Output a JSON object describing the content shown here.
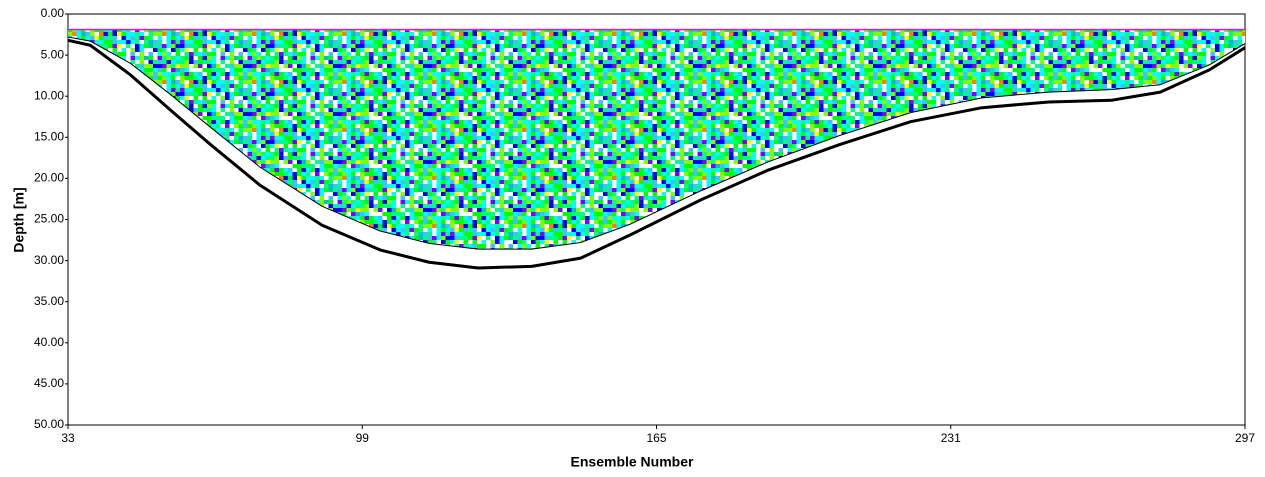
{
  "chart_data": {
    "type": "line",
    "x_label": "Ensemble Number",
    "y_label": "Depth [m]",
    "xlim": [
      33,
      297
    ],
    "xticks": [
      33,
      99,
      165,
      231,
      297
    ],
    "ylim": [
      0,
      50
    ],
    "y_inverted": true,
    "yticks": [
      {
        "value": 0,
        "label": "0.00"
      },
      {
        "value": 5,
        "label": "5.00"
      },
      {
        "value": 10,
        "label": "10.00"
      },
      {
        "value": 15,
        "label": "15.00"
      },
      {
        "value": 20,
        "label": "20.00"
      },
      {
        "value": 25,
        "label": "25.00"
      },
      {
        "value": 30,
        "label": "30.00"
      },
      {
        "value": 35,
        "label": "35.00"
      },
      {
        "value": 40,
        "label": "40.00"
      },
      {
        "value": 45,
        "label": "45.00"
      },
      {
        "value": 50,
        "label": "50.00"
      }
    ],
    "x": [
      33,
      38,
      47,
      56,
      65,
      76,
      90,
      103,
      114,
      125,
      137,
      148,
      159,
      175,
      190,
      206,
      222,
      238,
      253,
      267,
      278,
      289,
      297
    ],
    "series": [
      {
        "color": "#000000",
        "width": 3,
        "values": [
          3.2,
          3.8,
          7.4,
          11.7,
          15.9,
          20.8,
          25.7,
          28.7,
          30.2,
          30.9,
          30.7,
          29.7,
          26.9,
          22.6,
          19.0,
          15.9,
          13.1,
          11.4,
          10.7,
          10.5,
          9.5,
          6.8,
          4.1
        ]
      },
      {
        "color": "#000000",
        "width": 1,
        "values": [
          2.8,
          3.3,
          6.0,
          9.8,
          13.8,
          18.6,
          23.4,
          26.4,
          27.9,
          28.6,
          28.6,
          27.8,
          25.6,
          21.5,
          18.0,
          14.8,
          12.0,
          10.2,
          9.5,
          9.2,
          8.6,
          6.2,
          3.6
        ]
      },
      {
        "color": "#ff00ff",
        "width": 1.5,
        "values": [
          1.9,
          1.9,
          1.9,
          1.9,
          1.9,
          1.9,
          1.9,
          1.9,
          1.9,
          1.9,
          1.9,
          1.9,
          1.9,
          1.9,
          1.9,
          1.9,
          1.9,
          1.9,
          1.9,
          1.9,
          1.9,
          1.9,
          1.9
        ]
      }
    ]
  }
}
